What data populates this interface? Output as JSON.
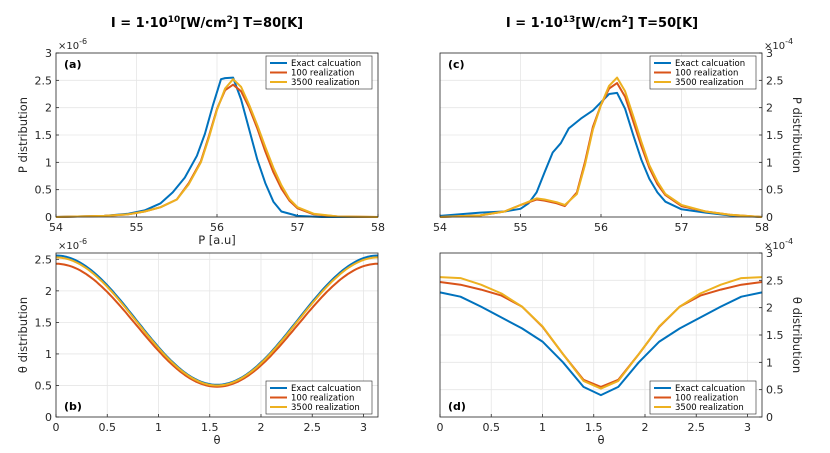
{
  "titles": {
    "left": {
      "pre": "I = 1·10",
      "sup1": "10",
      "mid": "[W/cm",
      "sup2": "2",
      "post": "] T=80[K]"
    },
    "right": {
      "pre": "I = 1·10",
      "sup1": "13",
      "mid": "[W/cm",
      "sup2": "2",
      "post": "] T=50[K]"
    }
  },
  "colors": {
    "exact": "#0072BD",
    "r100": "#D95319",
    "r3500": "#EDB120"
  },
  "chart_data": [
    {
      "id": "a",
      "panel_label": "(a)",
      "type": "line",
      "xlim": [
        54,
        58
      ],
      "ylim": [
        0,
        3
      ],
      "xticks": [
        "54",
        "55",
        "56",
        "57",
        "58"
      ],
      "yticks": [
        "0",
        "0.5",
        "1",
        "1.5",
        "2",
        "2.5",
        "3"
      ],
      "xlabel": "P [a.u]",
      "ylabel": "P distribution",
      "ylabel_side": "left",
      "exponent": "×10",
      "exponent_power": "-6",
      "legend_position": "top-right",
      "series": [
        {
          "name": "Exact calcuation",
          "color": "#0072BD",
          "x": [
            54,
            54.6,
            54.9,
            55.1,
            55.3,
            55.45,
            55.6,
            55.75,
            55.85,
            55.95,
            56.05,
            56.1,
            56.2,
            56.3,
            56.4,
            56.5,
            56.6,
            56.7,
            56.8,
            57.0,
            57.3,
            58
          ],
          "y": [
            0,
            0.02,
            0.06,
            0.12,
            0.25,
            0.45,
            0.72,
            1.12,
            1.52,
            2.05,
            2.52,
            2.54,
            2.55,
            2.15,
            1.6,
            1.05,
            0.62,
            0.28,
            0.1,
            0.02,
            0,
            0
          ]
        },
        {
          "name": "100 realization",
          "color": "#D95319",
          "x": [
            54,
            54.6,
            54.9,
            55.1,
            55.3,
            55.5,
            55.65,
            55.8,
            55.9,
            56.0,
            56.1,
            56.2,
            56.3,
            56.4,
            56.5,
            56.6,
            56.7,
            56.8,
            56.9,
            57.0,
            57.2,
            57.5,
            58
          ],
          "y": [
            0,
            0.02,
            0.05,
            0.1,
            0.18,
            0.32,
            0.62,
            1.02,
            1.48,
            1.98,
            2.32,
            2.42,
            2.3,
            2.0,
            1.62,
            1.2,
            0.82,
            0.52,
            0.3,
            0.16,
            0.05,
            0.01,
            0
          ]
        },
        {
          "name": "3500 realization",
          "color": "#EDB120",
          "x": [
            54,
            54.6,
            54.9,
            55.1,
            55.3,
            55.5,
            55.65,
            55.8,
            55.9,
            56.0,
            56.1,
            56.2,
            56.3,
            56.4,
            56.5,
            56.6,
            56.7,
            56.8,
            56.9,
            57.0,
            57.2,
            57.5,
            58
          ],
          "y": [
            0,
            0.02,
            0.05,
            0.1,
            0.18,
            0.32,
            0.6,
            1.0,
            1.45,
            1.96,
            2.35,
            2.52,
            2.38,
            2.05,
            1.68,
            1.28,
            0.9,
            0.58,
            0.33,
            0.18,
            0.06,
            0.01,
            0
          ]
        }
      ]
    },
    {
      "id": "b",
      "panel_label": "(b)",
      "type": "line",
      "xlim": [
        0,
        3.1416
      ],
      "ylim": [
        0,
        2.6
      ],
      "xticks": [
        "0",
        "0.5",
        "1",
        "1.5",
        "2",
        "2.5",
        "3"
      ],
      "yticks": [
        "0",
        "0.5",
        "1",
        "1.5",
        "2",
        "2.5"
      ],
      "xlabel": "θ",
      "ylabel": "θ distribution",
      "ylabel_side": "left",
      "exponent": "×10",
      "exponent_power": "-6",
      "legend_position": "bottom-right",
      "series": [
        {
          "name": "Exact calcuation",
          "color": "#0072BD",
          "model": "cos2",
          "min": 0.51,
          "max": 2.56
        },
        {
          "name": "100 realization",
          "color": "#D95319",
          "model": "cos2",
          "min": 0.48,
          "max": 2.43
        },
        {
          "name": "3500 realization",
          "color": "#EDB120",
          "model": "cos2",
          "min": 0.5,
          "max": 2.53
        }
      ]
    },
    {
      "id": "c",
      "panel_label": "(c)",
      "type": "line",
      "xlim": [
        54,
        58
      ],
      "ylim": [
        0,
        3
      ],
      "xticks": [
        "54",
        "55",
        "56",
        "57",
        "58"
      ],
      "yticks": [
        "0",
        "0.5",
        "1",
        "1.5",
        "2",
        "2.5",
        "3"
      ],
      "xlabel": "",
      "ylabel": "P distribution",
      "ylabel_side": "right",
      "exponent": "×10",
      "exponent_power": "-4",
      "legend_position": "top-right",
      "series": [
        {
          "name": "Exact calcuation",
          "color": "#0072BD",
          "x": [
            54,
            54.5,
            54.8,
            55.0,
            55.1,
            55.2,
            55.3,
            55.4,
            55.5,
            55.6,
            55.75,
            55.9,
            56.0,
            56.1,
            56.2,
            56.3,
            56.4,
            56.5,
            56.6,
            56.7,
            56.8,
            57.0,
            57.3,
            57.6,
            58
          ],
          "y": [
            0.02,
            0.08,
            0.1,
            0.15,
            0.25,
            0.45,
            0.82,
            1.18,
            1.35,
            1.62,
            1.8,
            1.95,
            2.1,
            2.25,
            2.27,
            1.98,
            1.5,
            1.05,
            0.7,
            0.45,
            0.28,
            0.14,
            0.08,
            0.03,
            0
          ]
        },
        {
          "name": "100 realization",
          "color": "#D95319",
          "x": [
            54,
            54.5,
            54.8,
            55.0,
            55.2,
            55.3,
            55.45,
            55.55,
            55.7,
            55.8,
            55.9,
            56.0,
            56.1,
            56.2,
            56.3,
            56.4,
            56.5,
            56.6,
            56.7,
            56.8,
            57.0,
            57.3,
            57.6,
            58
          ],
          "y": [
            0,
            0.03,
            0.1,
            0.22,
            0.32,
            0.3,
            0.25,
            0.2,
            0.45,
            1.0,
            1.65,
            2.05,
            2.35,
            2.45,
            2.2,
            1.75,
            1.3,
            0.9,
            0.6,
            0.4,
            0.2,
            0.1,
            0.04,
            0
          ]
        },
        {
          "name": "3500 realization",
          "color": "#EDB120",
          "x": [
            54,
            54.5,
            54.8,
            55.0,
            55.2,
            55.3,
            55.45,
            55.55,
            55.7,
            55.8,
            55.9,
            56.0,
            56.1,
            56.2,
            56.3,
            56.4,
            56.5,
            56.6,
            56.7,
            56.8,
            57.0,
            57.3,
            57.6,
            58
          ],
          "y": [
            0,
            0.03,
            0.1,
            0.22,
            0.34,
            0.32,
            0.27,
            0.22,
            0.42,
            0.95,
            1.6,
            2.05,
            2.4,
            2.55,
            2.3,
            1.85,
            1.38,
            0.95,
            0.65,
            0.42,
            0.22,
            0.1,
            0.04,
            0
          ]
        }
      ]
    },
    {
      "id": "d",
      "panel_label": "(d)",
      "type": "line",
      "xlim": [
        0,
        3.1416
      ],
      "ylim": [
        0,
        3
      ],
      "xticks": [
        "0",
        "0.5",
        "1",
        "1.5",
        "2",
        "2.5",
        "3"
      ],
      "yticks": [
        "0",
        "0.5",
        "1",
        "1.5",
        "2",
        "2.5",
        "3"
      ],
      "xlabel": "θ",
      "ylabel": "θ distribution",
      "ylabel_side": "right",
      "exponent": "×10",
      "exponent_power": "-4",
      "legend_position": "bottom-right",
      "series": [
        {
          "name": "Exact calcuation",
          "color": "#0072BD",
          "x": [
            0,
            0.2,
            0.4,
            0.6,
            0.8,
            1.0,
            1.2,
            1.4,
            1.57,
            1.74,
            1.94,
            2.14,
            2.34,
            2.54,
            2.74,
            2.94,
            3.1416
          ],
          "y": [
            2.28,
            2.2,
            2.02,
            1.82,
            1.62,
            1.38,
            1.0,
            0.55,
            0.4,
            0.55,
            1.0,
            1.38,
            1.62,
            1.82,
            2.02,
            2.2,
            2.28
          ]
        },
        {
          "name": "100 realization",
          "color": "#D95319",
          "x": [
            0,
            0.2,
            0.4,
            0.6,
            0.8,
            1.0,
            1.2,
            1.4,
            1.57,
            1.74,
            1.94,
            2.14,
            2.34,
            2.54,
            2.74,
            2.94,
            3.1416
          ],
          "y": [
            2.47,
            2.42,
            2.33,
            2.22,
            2.02,
            1.65,
            1.15,
            0.68,
            0.55,
            0.68,
            1.15,
            1.65,
            2.02,
            2.22,
            2.33,
            2.42,
            2.47
          ]
        },
        {
          "name": "3500 realization",
          "color": "#EDB120",
          "x": [
            0,
            0.2,
            0.4,
            0.6,
            0.8,
            1.0,
            1.2,
            1.4,
            1.57,
            1.74,
            1.94,
            2.14,
            2.34,
            2.54,
            2.74,
            2.94,
            3.1416
          ],
          "y": [
            2.56,
            2.54,
            2.42,
            2.26,
            2.02,
            1.66,
            1.15,
            0.66,
            0.52,
            0.66,
            1.15,
            1.66,
            2.02,
            2.26,
            2.42,
            2.54,
            2.56
          ]
        }
      ]
    }
  ]
}
